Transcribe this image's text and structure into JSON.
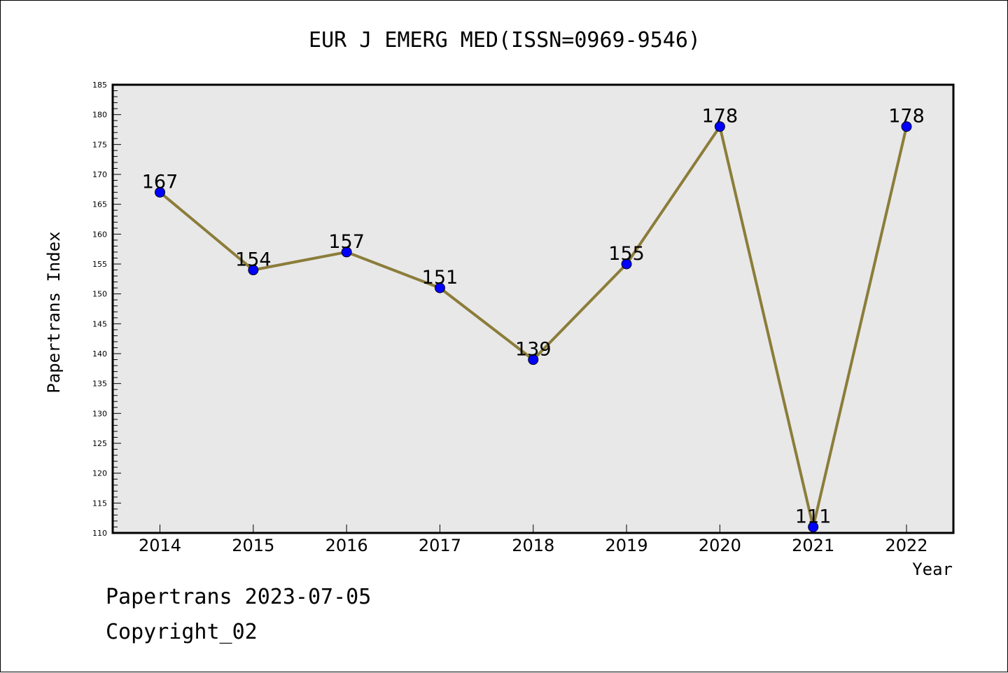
{
  "chart_data": {
    "type": "line",
    "title": "EUR J EMERG MED(ISSN=0969-9546)",
    "xlabel": "Year",
    "ylabel": "Papertrans Index",
    "categories": [
      "2014",
      "2015",
      "2016",
      "2017",
      "2018",
      "2019",
      "2020",
      "2021",
      "2022"
    ],
    "values": [
      167,
      154,
      157,
      151,
      139,
      155,
      178,
      111,
      178
    ],
    "data_labels": [
      "167",
      "154",
      "157",
      "151",
      "139",
      "155",
      "178",
      "111",
      "178"
    ],
    "ylim": [
      110,
      185
    ],
    "yticks": [
      "110",
      "115",
      "120",
      "125",
      "130",
      "135",
      "140",
      "145",
      "150",
      "155",
      "160",
      "165",
      "170",
      "175",
      "180",
      "185"
    ],
    "grid": false,
    "legend": "none",
    "colors": {
      "line": "#8B7D3A",
      "marker": "#0000FF",
      "plot_background": "#E8E8E8"
    }
  },
  "footer": {
    "line1": "Papertrans 2023-07-05",
    "line2": "Copyright_02"
  }
}
